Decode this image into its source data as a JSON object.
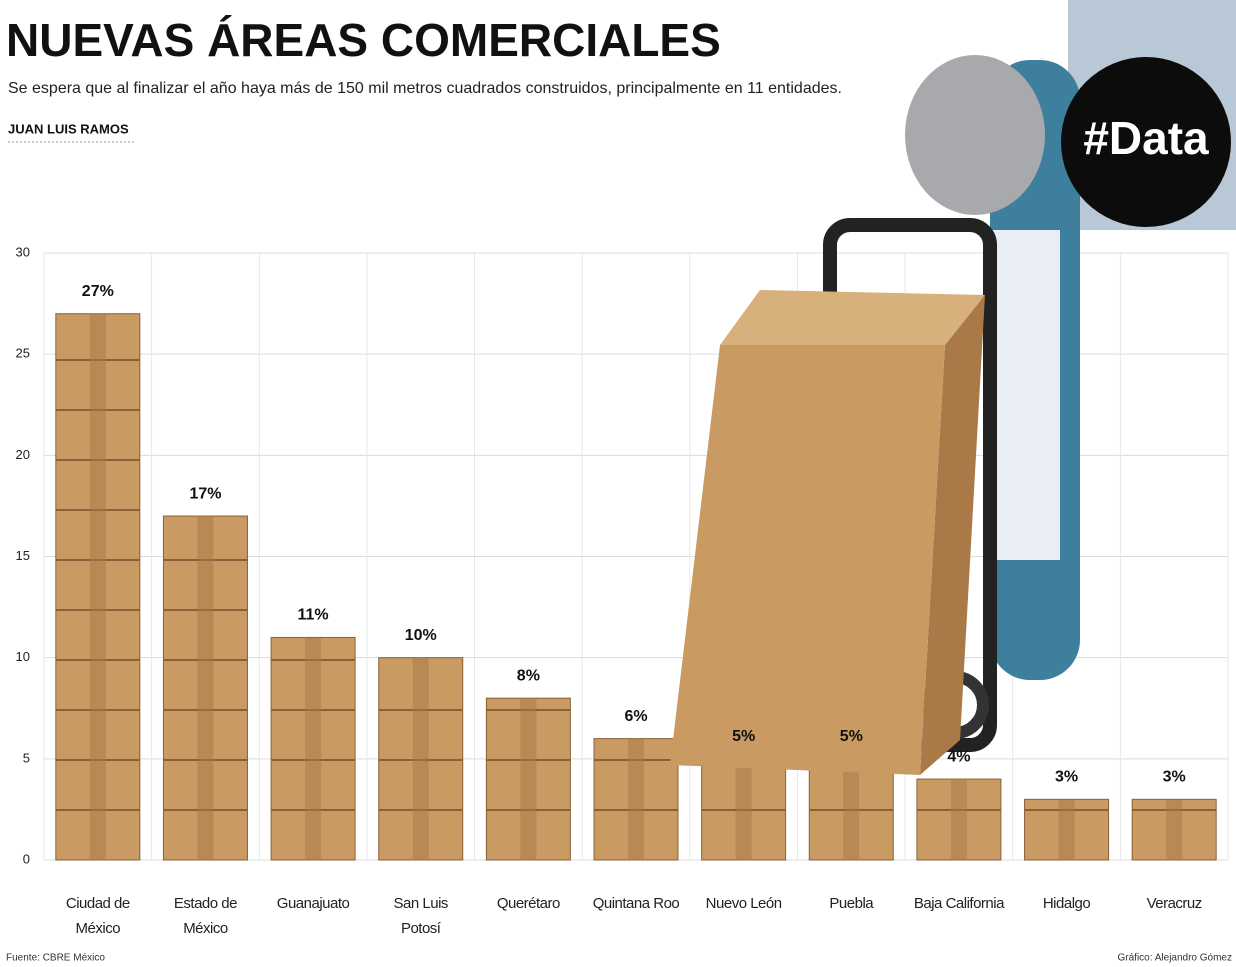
{
  "chart_data": {
    "type": "bar",
    "title": "NUEVAS ÁREAS COMERCIALES",
    "subtitle": "Se espera que al finalizar el año haya más de 150 mil metros cuadrados construidos, principalmente en 11 entidades.",
    "author": "JUAN LUIS RAMOS",
    "badge": "#Data",
    "source": "Fuente: CBRE México",
    "credit": "Gráfico: Alejandro Gómez",
    "categories": [
      "Ciudad de México",
      "Estado de México",
      "Guanajuato",
      "San Luis Potosí",
      "Querétaro",
      "Quintana Roo",
      "Nuevo León",
      "Puebla",
      "Baja California",
      "Hidalgo",
      "Veracruz"
    ],
    "values": [
      27,
      17,
      11,
      10,
      8,
      6,
      5,
      5,
      4,
      3,
      3
    ],
    "value_labels": [
      "27%",
      "17%",
      "11%",
      "10%",
      "8%",
      "6%",
      "5%",
      "5%",
      "4%",
      "3%",
      "3%"
    ],
    "color": "#c99a62",
    "ylim": [
      0,
      30
    ],
    "yticks": [
      0,
      5,
      10,
      15,
      20,
      25,
      30
    ],
    "grid": true
  }
}
